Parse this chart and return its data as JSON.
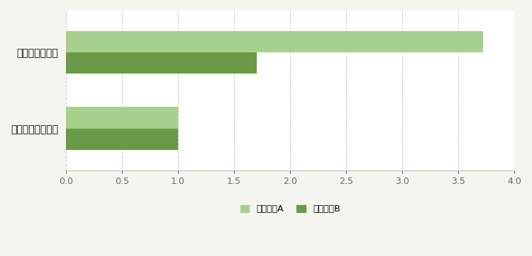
{
  "categories": [
    "試作した日本酒",
    "香りの高い日本酒"
  ],
  "series": [
    {
      "name": "香気成分A",
      "values": [
        3.72,
        1.0
      ],
      "color": "#a8d08d"
    },
    {
      "name": "香気成分B",
      "values": [
        1.7,
        1.0
      ],
      "color": "#6a9a45"
    }
  ],
  "xlim": [
    0,
    4.0
  ],
  "xticks": [
    0.0,
    0.5,
    1.0,
    1.5,
    2.0,
    2.5,
    3.0,
    3.5,
    4.0
  ],
  "xtick_labels": [
    "0.0",
    "0.5",
    "1.0",
    "1.5",
    "2.0",
    "2.5",
    "3.0",
    "3.5",
    "4.0"
  ],
  "bar_height": 0.28,
  "background_color": "#f5f5f0",
  "plot_bg_color": "#ffffff",
  "grid_color": "#cccccc",
  "legend_fontsize": 9,
  "tick_fontsize": 9,
  "label_fontsize": 10
}
